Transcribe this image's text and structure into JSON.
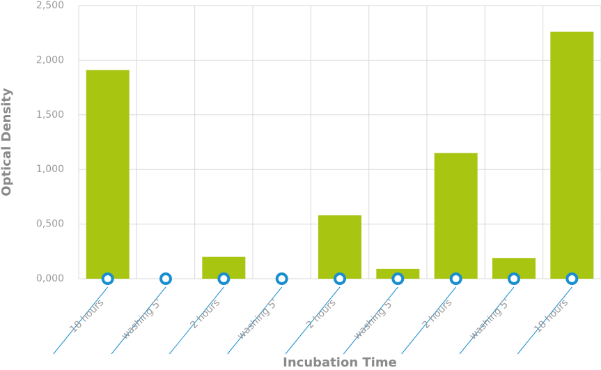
{
  "chart_data": {
    "type": "bar",
    "x_label": "Incubation Time",
    "y_label": "Optical Density",
    "categories": [
      "18 hours",
      "washing 5'",
      "2 hours",
      "washing 5'",
      "2 hours",
      "washing 5'",
      "2 hours",
      "washing 5'",
      "18 hours"
    ],
    "values": [
      1.91,
      0,
      0.2,
      0,
      0.58,
      0.09,
      1.15,
      0.19,
      2.26
    ],
    "color": "#a8c512",
    "ylim": [
      0,
      2.5
    ],
    "yticks": [
      {
        "value": 0,
        "label": "0,000"
      },
      {
        "value": 0.5,
        "label": "0,500"
      },
      {
        "value": 1,
        "label": "1,000"
      },
      {
        "value": 1.5,
        "label": "1,500"
      },
      {
        "value": 2,
        "label": "2,000"
      },
      {
        "value": 2.5,
        "label": "2,500"
      }
    ],
    "grid": true
  }
}
